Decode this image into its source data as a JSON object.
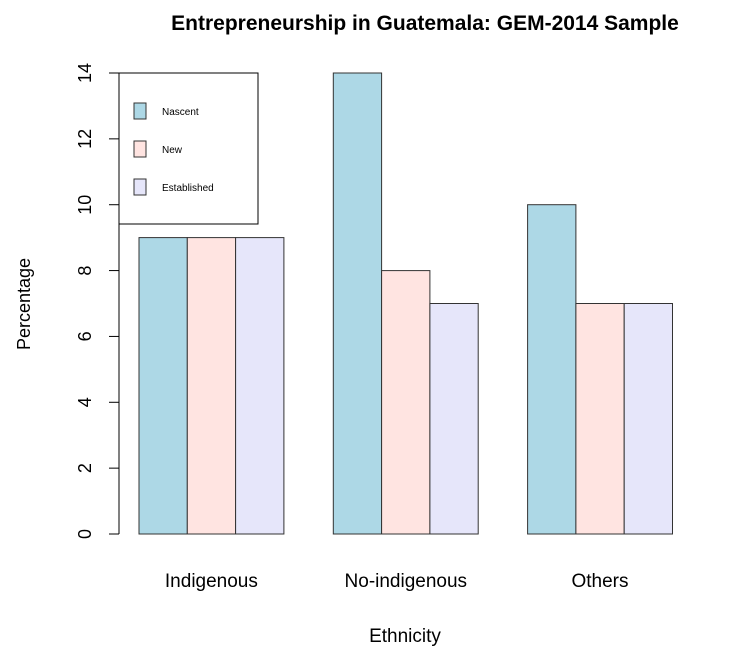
{
  "chart_data": {
    "type": "bar",
    "title": "Entrepreneurship in Guatemala: GEM-2014 Sample",
    "xlabel": "Ethnicity",
    "ylabel": "Percentage",
    "categories": [
      "Indigenous",
      "No-indigenous",
      "Others"
    ],
    "series": [
      {
        "name": "Nascent",
        "color": "#add8e6",
        "values": [
          9,
          14,
          10
        ]
      },
      {
        "name": "New",
        "color": "#ffe4e1",
        "values": [
          9,
          8,
          7
        ]
      },
      {
        "name": "Established",
        "color": "#e6e6fa",
        "values": [
          9,
          7,
          7
        ]
      }
    ],
    "ylim": [
      0,
      14
    ],
    "yticks": [
      0,
      2,
      4,
      6,
      8,
      10,
      12,
      14
    ],
    "ytick_labels": [
      "0",
      "2",
      "4",
      "6",
      "8",
      "10",
      "12",
      "14"
    ],
    "grid": false,
    "legend_position": "top-left",
    "bar_border_color": "#333333"
  }
}
